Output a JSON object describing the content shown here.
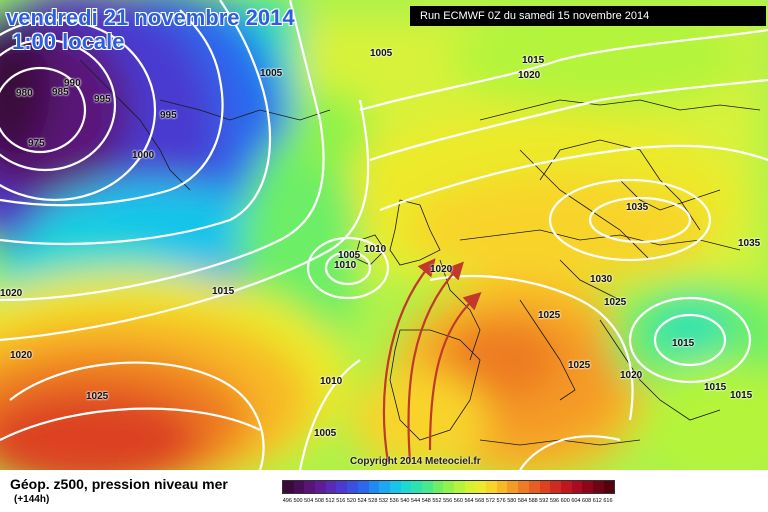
{
  "header": {
    "title_line1": "vendredi 21 novembre 2014",
    "title_line2": "1:00 locale",
    "run_info": "Run ECMWF 0Z du samedi 15 novembre 2014"
  },
  "map": {
    "isobar_labels": [
      "990",
      "980",
      "985",
      "995",
      "975",
      "995",
      "1000",
      "1005",
      "1005",
      "1015",
      "1020",
      "1035",
      "1035",
      "1005",
      "1010",
      "1010",
      "1020",
      "1015",
      "1030",
      "1025",
      "1025",
      "1015",
      "1025",
      "1020",
      "1015",
      "1015",
      "1020",
      "1025",
      "1010",
      "1005"
    ],
    "copyright": "Copyright 2014 Meteociel.fr",
    "arrow_color": "#c0392b"
  },
  "legend": {
    "title": "Géop. z500, pression niveau mer",
    "subtitle": "(+144h)",
    "scale_values": [
      "496",
      "500",
      "504",
      "508",
      "512",
      "516",
      "520",
      "524",
      "528",
      "532",
      "536",
      "540",
      "544",
      "548",
      "552",
      "556",
      "560",
      "564",
      "568",
      "572",
      "576",
      "580",
      "584",
      "588",
      "592",
      "596",
      "600",
      "604",
      "608",
      "612",
      "616"
    ],
    "scale_colors": [
      "#3a0a3a",
      "#4a0d5a",
      "#5a1478",
      "#5e1c96",
      "#5a2ab4",
      "#4a3ad0",
      "#3a50e0",
      "#2c68ee",
      "#2288f2",
      "#1ca8f2",
      "#18c4ea",
      "#1ed8d2",
      "#2ee2b0",
      "#4ae88a",
      "#6cee66",
      "#90f24a",
      "#b4f43a",
      "#d4f232",
      "#ecea2c",
      "#f8d42a",
      "#f8b828",
      "#f49a26",
      "#ee7c24",
      "#e65e22",
      "#dc4220",
      "#d02a20",
      "#c0161e",
      "#a80c1e",
      "#8c0818",
      "#700414",
      "#540210"
    ]
  }
}
